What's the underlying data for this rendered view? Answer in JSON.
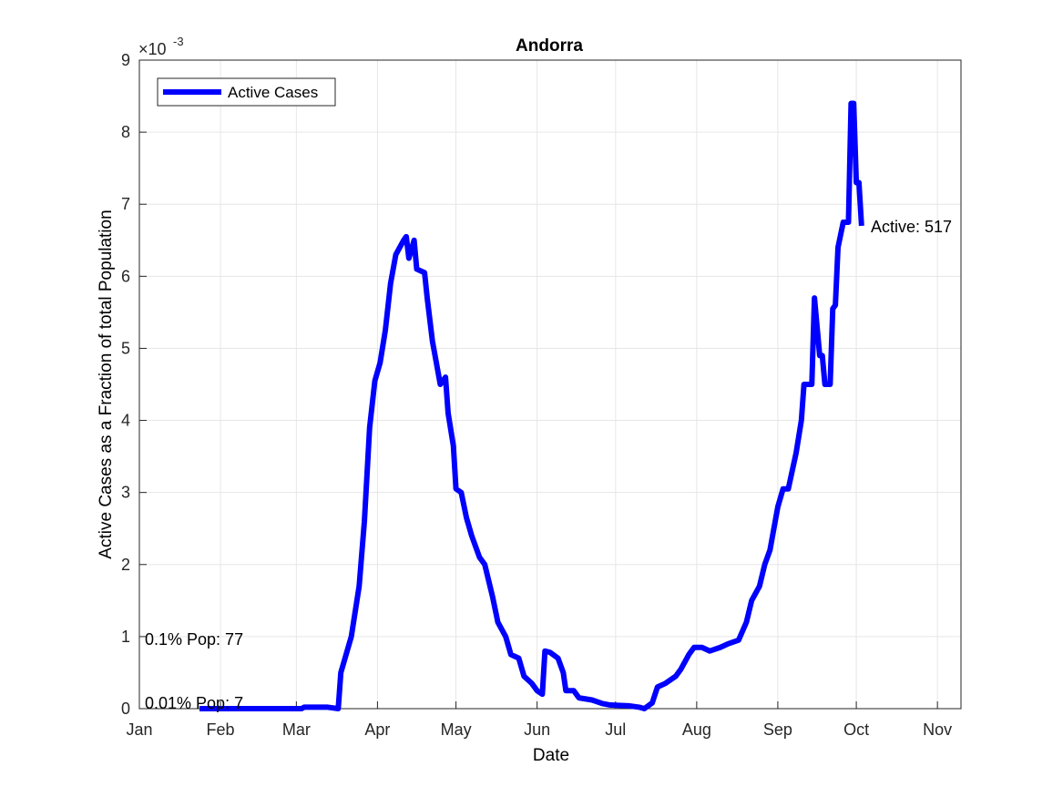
{
  "chart_data": {
    "type": "line",
    "title": "Andorra",
    "xlabel": "Date",
    "ylabel": "Active Cases as a Fraction of total Population",
    "y_multiplier": {
      "base": "×10",
      "exponent": "-3"
    },
    "xlim": [
      0,
      314
    ],
    "ylim": [
      0,
      9
    ],
    "xticks": [
      {
        "value": 0,
        "label": "Jan"
      },
      {
        "value": 31,
        "label": "Feb"
      },
      {
        "value": 60,
        "label": "Mar"
      },
      {
        "value": 91,
        "label": "Apr"
      },
      {
        "value": 121,
        "label": "May"
      },
      {
        "value": 152,
        "label": "Jun"
      },
      {
        "value": 182,
        "label": "Jul"
      },
      {
        "value": 213,
        "label": "Aug"
      },
      {
        "value": 244,
        "label": "Sep"
      },
      {
        "value": 274,
        "label": "Oct"
      },
      {
        "value": 305,
        "label": "Nov"
      }
    ],
    "yticks": [
      0,
      1,
      2,
      3,
      4,
      5,
      6,
      7,
      8,
      9
    ],
    "grid": true,
    "legend": "upper left",
    "x": [
      23,
      62,
      63,
      72,
      76,
      77,
      81,
      84,
      86,
      88,
      90,
      92,
      94,
      96,
      98,
      101,
      102,
      103,
      105,
      106,
      109,
      110,
      112,
      115,
      117,
      118,
      120,
      121,
      123,
      125,
      127,
      130,
      132,
      135,
      137,
      140,
      142,
      145,
      147,
      150,
      152,
      154,
      155,
      157,
      160,
      162,
      163,
      166,
      168,
      173,
      177,
      180,
      187,
      191,
      193,
      196,
      198,
      201,
      205,
      207,
      210,
      212,
      215,
      218,
      222,
      225,
      229,
      232,
      234,
      237,
      239,
      241,
      244,
      246,
      248,
      251,
      253,
      254,
      257,
      258,
      260,
      261,
      262,
      264,
      265,
      266,
      267,
      269,
      271,
      272,
      273,
      274,
      275,
      276
    ],
    "series": [
      {
        "name": "Active Cases",
        "color": "#0000ff",
        "values": [
          0,
          0,
          0.02,
          0.02,
          0,
          0.5,
          1.0,
          1.7,
          2.6,
          3.9,
          4.55,
          4.8,
          5.25,
          5.9,
          6.3,
          6.5,
          6.55,
          6.25,
          6.5,
          6.1,
          6.05,
          5.7,
          5.1,
          4.5,
          4.6,
          4.1,
          3.65,
          3.05,
          3.0,
          2.65,
          2.4,
          2.1,
          2.0,
          1.55,
          1.2,
          1.0,
          0.75,
          0.7,
          0.45,
          0.35,
          0.25,
          0.2,
          0.8,
          0.78,
          0.7,
          0.5,
          0.25,
          0.25,
          0.15,
          0.12,
          0.07,
          0.05,
          0.04,
          0.02,
          0,
          0.08,
          0.3,
          0.35,
          0.45,
          0.55,
          0.75,
          0.85,
          0.85,
          0.8,
          0.85,
          0.9,
          0.95,
          1.2,
          1.5,
          1.7,
          2.0,
          2.2,
          2.8,
          3.05,
          3.05,
          3.55,
          4.0,
          4.5,
          4.5,
          5.7,
          4.9,
          4.9,
          4.5,
          4.5,
          5.55,
          5.6,
          6.4,
          6.75,
          6.75,
          8.4,
          8.4,
          7.3,
          7.3,
          6.7
        ]
      }
    ],
    "annotations": [
      "Active: 517",
      "0.1% Pop: 77",
      "0.01% Pop: 7"
    ]
  }
}
